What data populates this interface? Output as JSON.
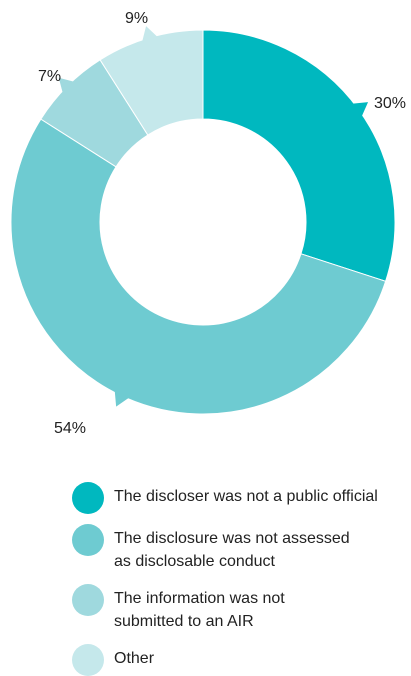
{
  "chart_data": {
    "type": "pie",
    "donut": true,
    "categories": [
      "The discloser was not a public official",
      "The disclosure was not assessed as disclosable conduct",
      "The information was not submitted to an AIR",
      "Other"
    ],
    "values": [
      30,
      54,
      7,
      9
    ],
    "value_labels": [
      "30%",
      "54%",
      "7%",
      "9%"
    ],
    "colors": [
      "#00b8bf",
      "#6ecbd1",
      "#9fd9de",
      "#c5e8eb"
    ],
    "legend_position": "bottom"
  },
  "legend": {
    "items": [
      {
        "line1": "The discloser was not a public official",
        "line2": "",
        "color": "#00b8bf"
      },
      {
        "line1": "The disclosure was not assessed",
        "line2": "as disclosable conduct",
        "color": "#6ecbd1"
      },
      {
        "line1": "The information was not",
        "line2": "submitted to an AIR",
        "color": "#9fd9de"
      },
      {
        "line1": "Other",
        "line2": "",
        "color": "#c5e8eb"
      }
    ]
  }
}
